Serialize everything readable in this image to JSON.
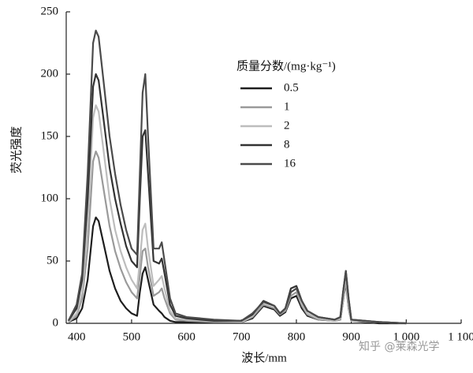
{
  "chart_data": {
    "type": "line",
    "x_label": "波长/mm",
    "y_label": "荧光强度",
    "legend_title": "质量分数/(mg·kg⁻¹)",
    "watermark": "知乎 @莱森光学",
    "xlim": [
      381,
      1100
    ],
    "ylim": [
      0,
      250
    ],
    "xticks": [
      400,
      500,
      600,
      700,
      800,
      900,
      {
        "value": 1000,
        "label": "1 000"
      },
      {
        "value": 1100,
        "label": "1 100"
      }
    ],
    "yticks": [
      0,
      50,
      100,
      150,
      200,
      250
    ],
    "x": [
      385,
      400,
      410,
      420,
      430,
      435,
      440,
      450,
      460,
      470,
      480,
      490,
      500,
      510,
      515,
      520,
      525,
      530,
      540,
      550,
      555,
      560,
      570,
      580,
      600,
      650,
      700,
      720,
      740,
      760,
      770,
      780,
      790,
      800,
      810,
      820,
      840,
      870,
      880,
      885,
      890,
      895,
      900,
      950,
      1000
    ],
    "series": [
      {
        "name": "0.5",
        "color": "#1e1e1e",
        "values": [
          1,
          4,
          12,
          35,
          78,
          85,
          82,
          62,
          42,
          28,
          18,
          12,
          8,
          6,
          25,
          40,
          45,
          35,
          15,
          10,
          8,
          5,
          2,
          1,
          1,
          1,
          1,
          4,
          14,
          11,
          6,
          9,
          20,
          22,
          12,
          6,
          3,
          2,
          3,
          18,
          33,
          12,
          2,
          0,
          0
        ]
      },
      {
        "name": "1",
        "color": "#9a9a9a",
        "values": [
          1,
          6,
          20,
          60,
          130,
          138,
          133,
          105,
          78,
          58,
          44,
          33,
          25,
          20,
          38,
          58,
          60,
          45,
          22,
          25,
          28,
          20,
          8,
          3,
          2,
          1,
          1,
          5,
          15,
          12,
          7,
          10,
          22,
          25,
          14,
          7,
          3,
          2,
          3,
          18,
          35,
          12,
          2,
          1,
          0
        ]
      },
      {
        "name": "2",
        "color": "#bdbdbd",
        "values": [
          1,
          8,
          25,
          80,
          165,
          175,
          170,
          135,
          100,
          75,
          58,
          45,
          35,
          28,
          50,
          75,
          80,
          60,
          30,
          35,
          38,
          28,
          10,
          4,
          3,
          2,
          1,
          6,
          18,
          14,
          8,
          12,
          25,
          28,
          16,
          8,
          4,
          2,
          4,
          20,
          38,
          15,
          2,
          1,
          0
        ]
      },
      {
        "name": "8",
        "color": "#333333",
        "values": [
          2,
          12,
          35,
          100,
          190,
          200,
          195,
          160,
          125,
          100,
          80,
          62,
          50,
          45,
          100,
          150,
          155,
          120,
          50,
          48,
          52,
          40,
          15,
          6,
          4,
          2,
          2,
          7,
          18,
          14,
          8,
          12,
          28,
          30,
          18,
          10,
          5,
          3,
          5,
          25,
          42,
          20,
          3,
          1,
          0
        ]
      },
      {
        "name": "16",
        "color": "#4a4a4a",
        "values": [
          2,
          15,
          40,
          120,
          225,
          235,
          230,
          190,
          150,
          120,
          95,
          75,
          60,
          55,
          120,
          185,
          200,
          150,
          60,
          60,
          65,
          50,
          20,
          8,
          5,
          3,
          2,
          8,
          17,
          14,
          8,
          12,
          25,
          28,
          18,
          10,
          5,
          3,
          5,
          25,
          42,
          20,
          3,
          1,
          0
        ]
      }
    ]
  }
}
